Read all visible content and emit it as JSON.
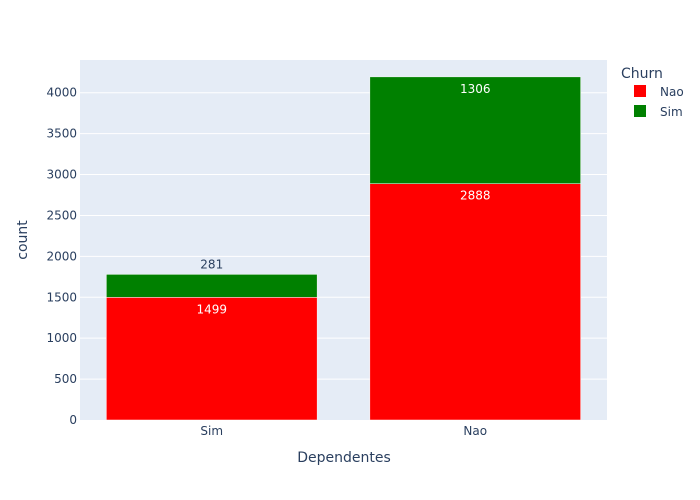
{
  "chart_data": {
    "type": "bar",
    "barmode": "stack",
    "xlabel": "Dependentes",
    "ylabel": "count",
    "categories": [
      "Sim",
      "Nao"
    ],
    "ylim": [
      0,
      4400
    ],
    "yticks": [
      0,
      500,
      1000,
      1500,
      2000,
      2500,
      3000,
      3500,
      4000
    ],
    "grid": true,
    "legend": {
      "title": "Churn",
      "placement": "top-right"
    },
    "series": [
      {
        "name": "Nao",
        "color": "#ff0000",
        "values": [
          1499,
          2888
        ]
      },
      {
        "name": "Sim",
        "color": "#008000",
        "values": [
          281,
          1306
        ]
      }
    ],
    "data_labels": [
      [
        "1499",
        "2888"
      ],
      [
        "281",
        "1306"
      ]
    ]
  }
}
